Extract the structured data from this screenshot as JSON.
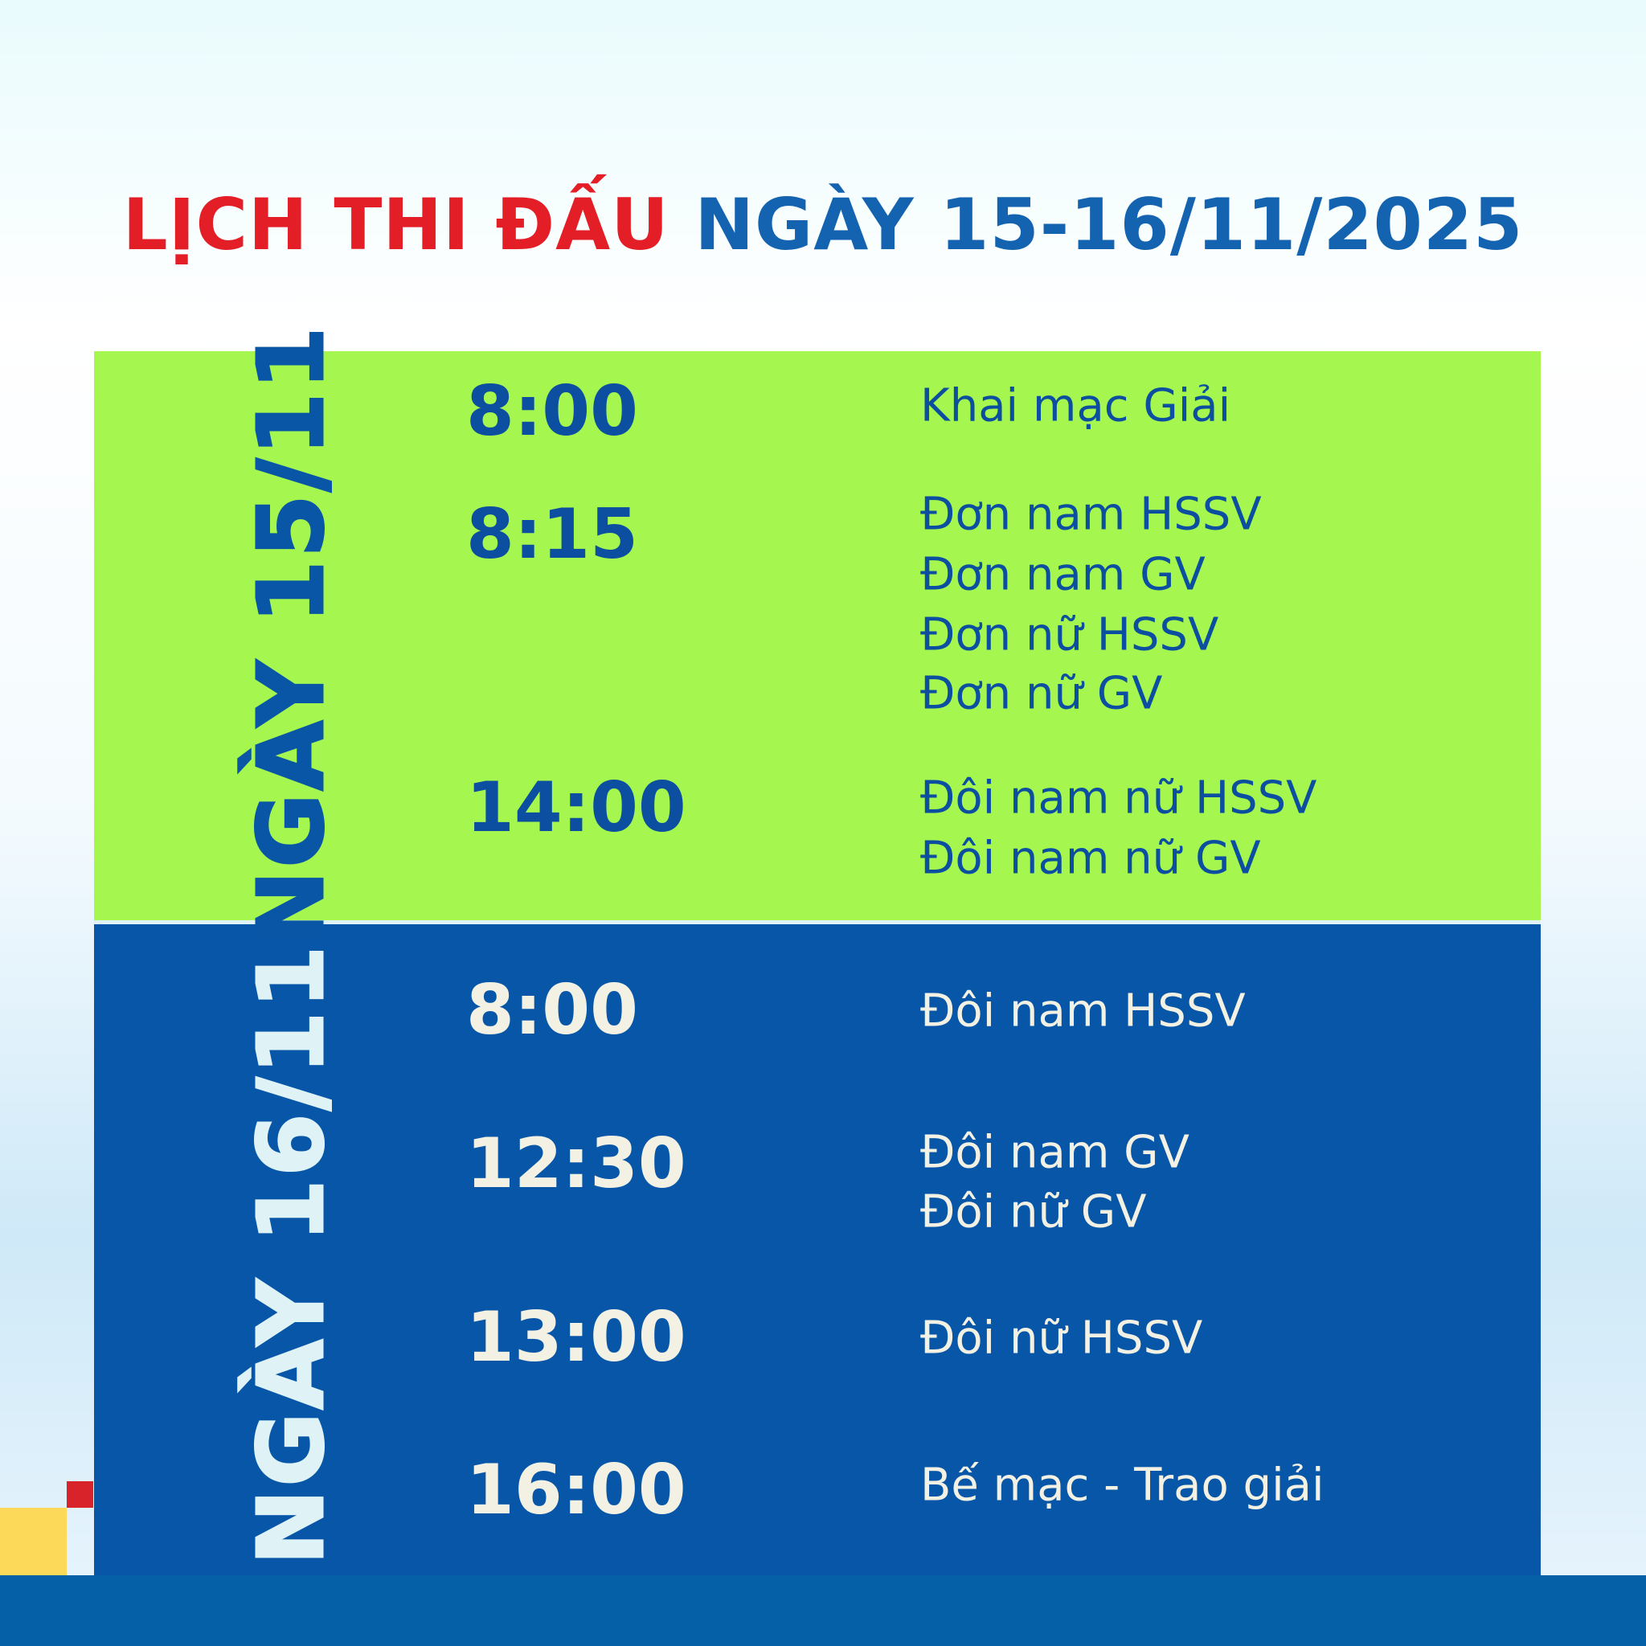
{
  "title": {
    "part1": "LỊCH THI ĐẤU",
    "part2": "NGÀY 15-16/11/2025"
  },
  "colors": {
    "title_red": "#e41e26",
    "title_blue": "#1463b0",
    "day1_bg": "#a6f650",
    "day2_bg": "#0856a8"
  },
  "days": [
    {
      "label": "NGÀY 15/11",
      "slots": [
        {
          "time": "8:00",
          "events": [
            "Khai mạc Giải"
          ]
        },
        {
          "time": "8:15",
          "events": [
            "Đơn nam HSSV",
            "Đơn nam GV",
            "Đơn nữ HSSV",
            "Đơn nữ GV"
          ]
        },
        {
          "time": "14:00",
          "events": [
            "Đôi nam nữ HSSV",
            "Đôi nam nữ GV"
          ]
        }
      ]
    },
    {
      "label": "NGÀY 16/11",
      "slots": [
        {
          "time": "8:00",
          "events": [
            "Đôi nam HSSV"
          ]
        },
        {
          "time": "12:30",
          "events": [
            "Đôi nam GV",
            "Đôi nữ GV"
          ]
        },
        {
          "time": "13:00",
          "events": [
            "Đôi nữ HSSV"
          ]
        },
        {
          "time": "16:00",
          "events": [
            "Bế mạc - Trao giải"
          ]
        }
      ]
    }
  ]
}
